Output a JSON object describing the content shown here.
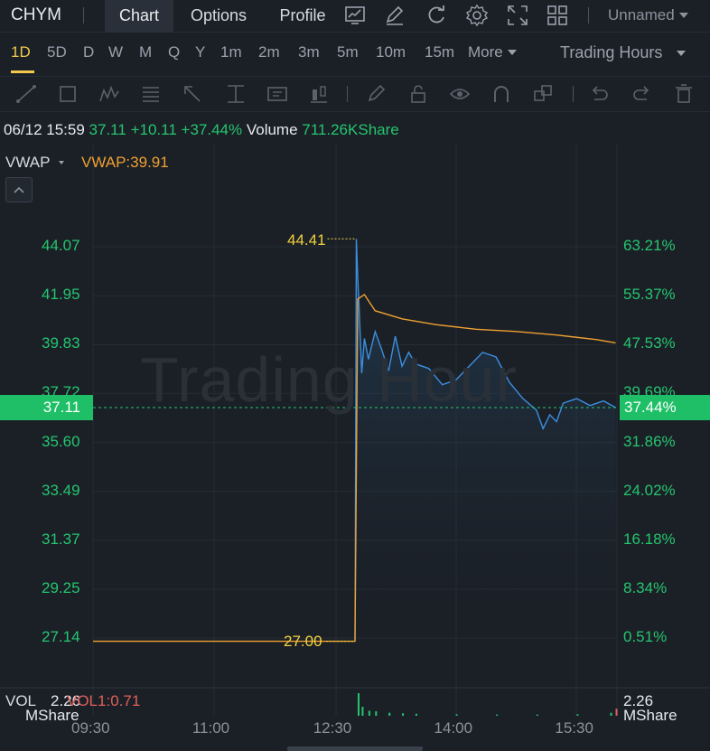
{
  "topbar": {
    "ticker": "CHYM",
    "tabs": [
      {
        "label": "Chart",
        "active": true
      },
      {
        "label": "Options",
        "active": false
      },
      {
        "label": "Profile",
        "active": false
      }
    ],
    "icons": [
      "chart-indicator-icon",
      "draw-icon",
      "refresh-icon",
      "settings-icon",
      "fullscreen-icon",
      "layout-icon"
    ],
    "layout_name": "Unnamed"
  },
  "periods": {
    "items": [
      "1D",
      "5D",
      "D",
      "W",
      "M",
      "Q",
      "Y",
      "1m",
      "2m",
      "3m",
      "5m",
      "10m",
      "15m",
      "More"
    ],
    "active": "1D",
    "session": "Trading Hours"
  },
  "drawbar": {
    "icons": [
      "trendline-icon",
      "rectangle-icon",
      "pattern-icon",
      "fib-icon",
      "arrow-icon",
      "measure-icon",
      "text-icon",
      "candle-icon",
      "pencil-icon",
      "lock-icon",
      "eye-icon",
      "magnet-icon",
      "shapes-icon",
      "undo-icon",
      "redo-icon",
      "trash-icon"
    ]
  },
  "info": {
    "datetime": "06/12 15:59",
    "price": "37.11",
    "change": "+10.11",
    "change_pct": "+37.44%",
    "volume_label": "Volume",
    "volume": "711.26KShare"
  },
  "indicator": {
    "name": "VWAP",
    "value_label": "VWAP:39.91"
  },
  "watermark": "Trading Hour",
  "current": {
    "price_label": "37.11",
    "pct_label": "37.44%"
  },
  "annotations": {
    "high": "44.41",
    "low": "27.00"
  },
  "volume_pane": {
    "label": "VOL",
    "left_value": "2.26",
    "left_unit": "MShare",
    "vol_value": "VOL1:0.71",
    "right_value": "2.26",
    "right_unit": "MShare"
  },
  "colors": {
    "up": "#25c56f",
    "price_line": "#3b8fe0",
    "vwap_line": "#f0a030",
    "annotation": "#f2d23c",
    "background": "#1b2027"
  },
  "chart_data": {
    "type": "line",
    "x_ticks": [
      "09:30",
      "11:00",
      "12:30",
      "14:00",
      "15:30"
    ],
    "y_left_ticks": [
      "44.07",
      "41.95",
      "39.83",
      "37.72",
      "35.60",
      "33.49",
      "31.37",
      "29.25",
      "27.14"
    ],
    "y_right_ticks": [
      "63.21%",
      "55.37%",
      "47.53%",
      "39.69%",
      "31.86%",
      "24.02%",
      "16.18%",
      "8.34%",
      "0.51%"
    ],
    "ylim": [
      26.5,
      44.7
    ],
    "previous_close": 27.0,
    "series": [
      {
        "name": "VWAP",
        "x": [
          "09:30",
          "11:00",
          "12:00",
          "12:45",
          "12:47",
          "12:52",
          "13:00",
          "13:20",
          "13:45",
          "14:15",
          "14:45",
          "15:15",
          "15:45",
          "15:59"
        ],
        "values": [
          27.0,
          27.0,
          27.0,
          27.0,
          41.8,
          42.0,
          41.3,
          40.95,
          40.7,
          40.5,
          40.4,
          40.25,
          40.05,
          39.91
        ]
      },
      {
        "name": "",
        "x": [
          "12:45",
          "12:46",
          "12:47",
          "12:48",
          "12:50",
          "12:52",
          "12:55",
          "13:00",
          "13:05",
          "13:10",
          "13:15",
          "13:20",
          "13:25",
          "13:30",
          "13:40",
          "13:50",
          "14:00",
          "14:10",
          "14:20",
          "14:30",
          "14:40",
          "14:50",
          "15:00",
          "15:05",
          "15:10",
          "15:15",
          "15:20",
          "15:30",
          "15:40",
          "15:50",
          "15:59"
        ],
        "values": [
          27.0,
          44.41,
          42.8,
          41.5,
          38.6,
          40.1,
          39.2,
          40.4,
          39.6,
          38.7,
          40.2,
          38.9,
          39.5,
          39.0,
          38.8,
          38.1,
          38.3,
          38.9,
          39.5,
          39.3,
          38.2,
          37.5,
          37.0,
          36.2,
          36.8,
          36.5,
          37.3,
          37.5,
          37.2,
          37.4,
          37.11
        ]
      }
    ],
    "volume": {
      "x": [
        "12:47",
        "12:50",
        "12:55",
        "13:00",
        "13:10",
        "13:20",
        "13:30",
        "14:00",
        "14:30",
        "15:00",
        "15:30",
        "15:55",
        "15:59"
      ],
      "values": [
        2.26,
        0.9,
        0.5,
        0.45,
        0.3,
        0.25,
        0.2,
        0.15,
        0.12,
        0.12,
        0.15,
        0.3,
        0.71
      ]
    }
  }
}
